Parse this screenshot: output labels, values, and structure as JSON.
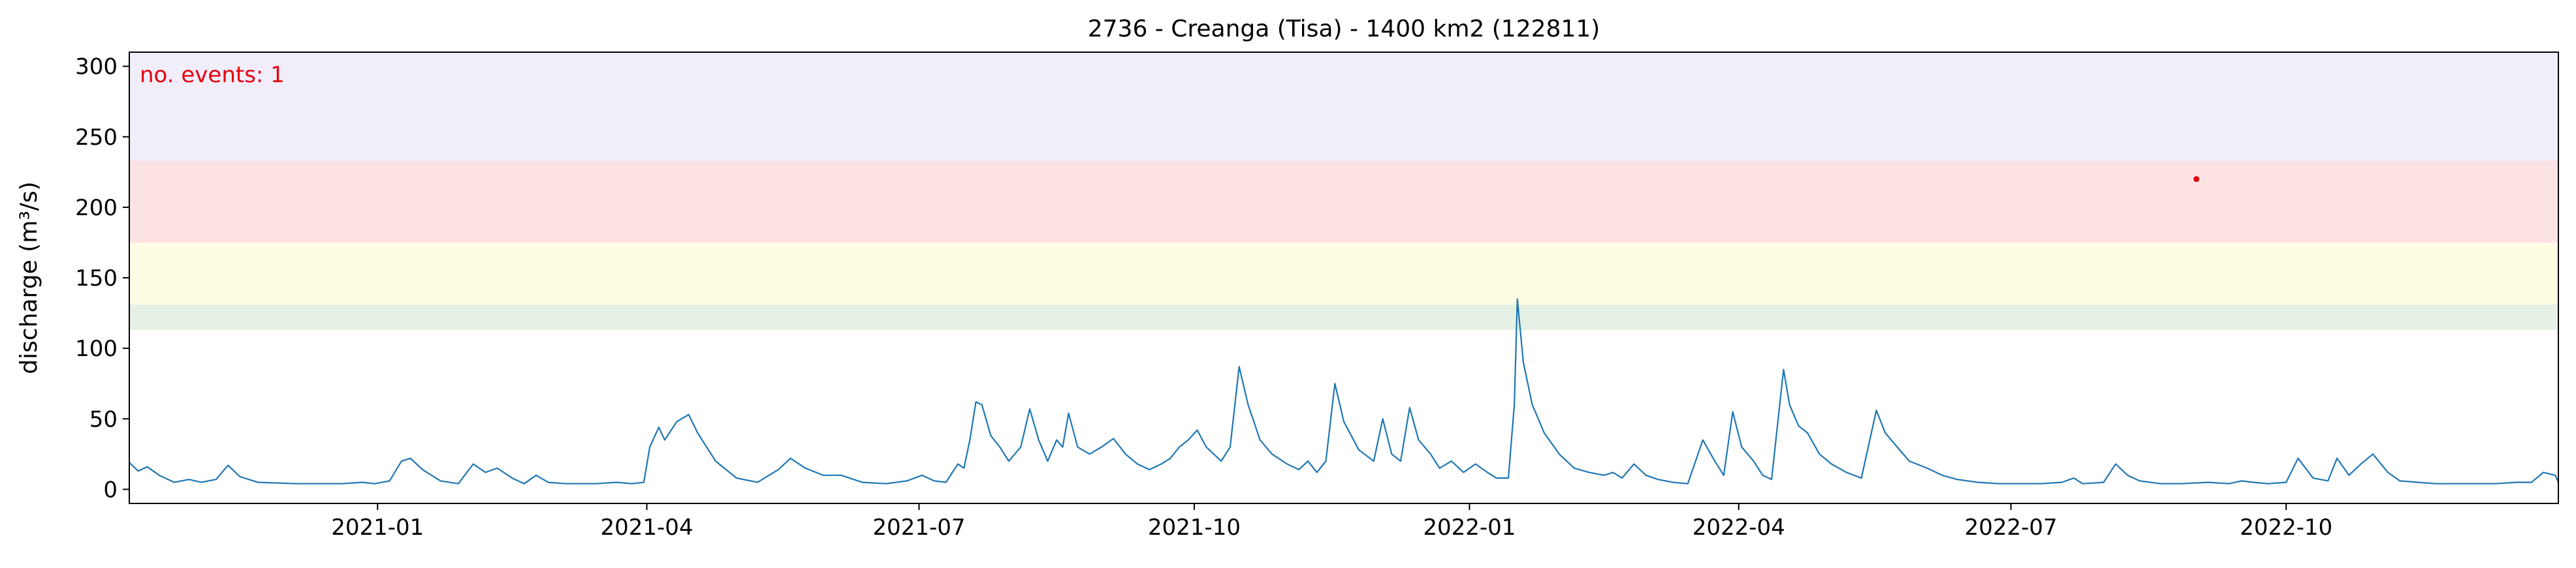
{
  "chart_data": {
    "type": "line",
    "title": "2736 - Creanga (Tisa) - 1400 km2 (122811)",
    "xlabel": "",
    "ylabel": "discharge (m³/s)",
    "ylim": [
      -10,
      310
    ],
    "xlim": [
      "2020-10-10",
      "2022-12-31"
    ],
    "y_ticks": [
      0,
      50,
      100,
      150,
      200,
      250,
      300
    ],
    "x_ticks": [
      "2021-01",
      "2021-04",
      "2021-07",
      "2021-10",
      "2022-01",
      "2022-04",
      "2022-07",
      "2022-10"
    ],
    "x_tick_dates": [
      "2021-01-01",
      "2021-04-01",
      "2021-07-01",
      "2021-10-01",
      "2022-01-01",
      "2022-04-01",
      "2022-07-01",
      "2022-10-01"
    ],
    "grid": false,
    "annotation": {
      "text": "no. events: 1",
      "color": "#e3000f"
    },
    "threshold_bands": [
      {
        "from": 113,
        "to": 131,
        "color": "#e4f1e4"
      },
      {
        "from": 131,
        "to": 175,
        "color": "#fdfde4"
      },
      {
        "from": 175,
        "to": 233,
        "color": "#fde3e4"
      },
      {
        "from": 233,
        "to": 310,
        "color": "#f1eefa"
      }
    ],
    "events": [
      {
        "date": "2022-09-01",
        "value": 220,
        "color": "#e3000f"
      }
    ],
    "series": [
      {
        "color": "#1f77b4",
        "points": [
          [
            "2020-10-10",
            19
          ],
          [
            "2020-10-13",
            13
          ],
          [
            "2020-10-16",
            16
          ],
          [
            "2020-10-20",
            10
          ],
          [
            "2020-10-25",
            5
          ],
          [
            "2020-10-30",
            7
          ],
          [
            "2020-11-03",
            5
          ],
          [
            "2020-11-08",
            7
          ],
          [
            "2020-11-12",
            17
          ],
          [
            "2020-11-16",
            9
          ],
          [
            "2020-11-22",
            5
          ],
          [
            "2020-12-05",
            4
          ],
          [
            "2020-12-20",
            4
          ],
          [
            "2020-12-27",
            5
          ],
          [
            "2020-12-31",
            4
          ],
          [
            "2021-01-05",
            6
          ],
          [
            "2021-01-09",
            20
          ],
          [
            "2021-01-12",
            22
          ],
          [
            "2021-01-16",
            14
          ],
          [
            "2021-01-22",
            6
          ],
          [
            "2021-01-28",
            4
          ],
          [
            "2021-02-02",
            18
          ],
          [
            "2021-02-06",
            12
          ],
          [
            "2021-02-10",
            15
          ],
          [
            "2021-02-15",
            8
          ],
          [
            "2021-02-19",
            4
          ],
          [
            "2021-02-23",
            10
          ],
          [
            "2021-02-27",
            5
          ],
          [
            "2021-03-05",
            4
          ],
          [
            "2021-03-15",
            4
          ],
          [
            "2021-03-22",
            5
          ],
          [
            "2021-03-27",
            4
          ],
          [
            "2021-03-31",
            5
          ],
          [
            "2021-04-02",
            30
          ],
          [
            "2021-04-05",
            44
          ],
          [
            "2021-04-07",
            35
          ],
          [
            "2021-04-11",
            48
          ],
          [
            "2021-04-15",
            53
          ],
          [
            "2021-04-18",
            40
          ],
          [
            "2021-04-24",
            20
          ],
          [
            "2021-05-01",
            8
          ],
          [
            "2021-05-08",
            5
          ],
          [
            "2021-05-15",
            14
          ],
          [
            "2021-05-19",
            22
          ],
          [
            "2021-05-24",
            15
          ],
          [
            "2021-05-30",
            10
          ],
          [
            "2021-06-05",
            10
          ],
          [
            "2021-06-12",
            5
          ],
          [
            "2021-06-20",
            4
          ],
          [
            "2021-06-27",
            6
          ],
          [
            "2021-07-02",
            10
          ],
          [
            "2021-07-06",
            6
          ],
          [
            "2021-07-10",
            5
          ],
          [
            "2021-07-14",
            18
          ],
          [
            "2021-07-16",
            15
          ],
          [
            "2021-07-18",
            35
          ],
          [
            "2021-07-20",
            62
          ],
          [
            "2021-07-22",
            60
          ],
          [
            "2021-07-25",
            38
          ],
          [
            "2021-07-28",
            30
          ],
          [
            "2021-07-31",
            20
          ],
          [
            "2021-08-04",
            30
          ],
          [
            "2021-08-07",
            57
          ],
          [
            "2021-08-10",
            35
          ],
          [
            "2021-08-13",
            20
          ],
          [
            "2021-08-16",
            35
          ],
          [
            "2021-08-18",
            30
          ],
          [
            "2021-08-20",
            54
          ],
          [
            "2021-08-23",
            30
          ],
          [
            "2021-08-27",
            25
          ],
          [
            "2021-08-31",
            30
          ],
          [
            "2021-09-04",
            36
          ],
          [
            "2021-09-08",
            25
          ],
          [
            "2021-09-12",
            18
          ],
          [
            "2021-09-16",
            14
          ],
          [
            "2021-09-20",
            18
          ],
          [
            "2021-09-23",
            22
          ],
          [
            "2021-09-26",
            30
          ],
          [
            "2021-09-29",
            35
          ],
          [
            "2021-10-02",
            42
          ],
          [
            "2021-10-05",
            30
          ],
          [
            "2021-10-10",
            20
          ],
          [
            "2021-10-13",
            30
          ],
          [
            "2021-10-16",
            87
          ],
          [
            "2021-10-19",
            60
          ],
          [
            "2021-10-23",
            35
          ],
          [
            "2021-10-27",
            25
          ],
          [
            "2021-11-01",
            18
          ],
          [
            "2021-11-05",
            14
          ],
          [
            "2021-11-08",
            20
          ],
          [
            "2021-11-11",
            12
          ],
          [
            "2021-11-14",
            20
          ],
          [
            "2021-11-17",
            75
          ],
          [
            "2021-11-20",
            48
          ],
          [
            "2021-11-25",
            28
          ],
          [
            "2021-11-30",
            20
          ],
          [
            "2021-12-03",
            50
          ],
          [
            "2021-12-06",
            25
          ],
          [
            "2021-12-09",
            20
          ],
          [
            "2021-12-12",
            58
          ],
          [
            "2021-12-15",
            35
          ],
          [
            "2021-12-19",
            25
          ],
          [
            "2021-12-22",
            15
          ],
          [
            "2021-12-26",
            20
          ],
          [
            "2021-12-30",
            12
          ],
          [
            "2022-01-03",
            18
          ],
          [
            "2022-01-07",
            12
          ],
          [
            "2022-01-10",
            8
          ],
          [
            "2022-01-14",
            8
          ],
          [
            "2022-01-16",
            60
          ],
          [
            "2022-01-17",
            135
          ],
          [
            "2022-01-19",
            90
          ],
          [
            "2022-01-22",
            60
          ],
          [
            "2022-01-26",
            40
          ],
          [
            "2022-01-31",
            25
          ],
          [
            "2022-02-05",
            15
          ],
          [
            "2022-02-10",
            12
          ],
          [
            "2022-02-15",
            10
          ],
          [
            "2022-02-18",
            12
          ],
          [
            "2022-02-21",
            8
          ],
          [
            "2022-02-25",
            18
          ],
          [
            "2022-03-01",
            10
          ],
          [
            "2022-03-05",
            7
          ],
          [
            "2022-03-10",
            5
          ],
          [
            "2022-03-15",
            4
          ],
          [
            "2022-03-20",
            35
          ],
          [
            "2022-03-24",
            20
          ],
          [
            "2022-03-27",
            10
          ],
          [
            "2022-03-30",
            55
          ],
          [
            "2022-04-02",
            30
          ],
          [
            "2022-04-06",
            20
          ],
          [
            "2022-04-09",
            10
          ],
          [
            "2022-04-12",
            7
          ],
          [
            "2022-04-16",
            85
          ],
          [
            "2022-04-18",
            60
          ],
          [
            "2022-04-21",
            45
          ],
          [
            "2022-04-24",
            40
          ],
          [
            "2022-04-28",
            25
          ],
          [
            "2022-05-02",
            18
          ],
          [
            "2022-05-07",
            12
          ],
          [
            "2022-05-12",
            8
          ],
          [
            "2022-05-17",
            56
          ],
          [
            "2022-05-20",
            40
          ],
          [
            "2022-05-24",
            30
          ],
          [
            "2022-05-28",
            20
          ],
          [
            "2022-06-03",
            15
          ],
          [
            "2022-06-08",
            10
          ],
          [
            "2022-06-13",
            7
          ],
          [
            "2022-06-20",
            5
          ],
          [
            "2022-06-27",
            4
          ],
          [
            "2022-07-04",
            4
          ],
          [
            "2022-07-11",
            4
          ],
          [
            "2022-07-18",
            5
          ],
          [
            "2022-07-22",
            8
          ],
          [
            "2022-07-25",
            4
          ],
          [
            "2022-08-01",
            5
          ],
          [
            "2022-08-05",
            18
          ],
          [
            "2022-08-09",
            10
          ],
          [
            "2022-08-13",
            6
          ],
          [
            "2022-08-20",
            4
          ],
          [
            "2022-08-27",
            4
          ],
          [
            "2022-09-05",
            5
          ],
          [
            "2022-09-12",
            4
          ],
          [
            "2022-09-16",
            6
          ],
          [
            "2022-09-20",
            5
          ],
          [
            "2022-09-25",
            4
          ],
          [
            "2022-10-01",
            5
          ],
          [
            "2022-10-05",
            22
          ],
          [
            "2022-10-10",
            8
          ],
          [
            "2022-10-15",
            6
          ],
          [
            "2022-10-18",
            22
          ],
          [
            "2022-10-22",
            10
          ],
          [
            "2022-10-26",
            18
          ],
          [
            "2022-10-30",
            25
          ],
          [
            "2022-11-04",
            12
          ],
          [
            "2022-11-08",
            6
          ],
          [
            "2022-11-14",
            5
          ],
          [
            "2022-11-20",
            4
          ],
          [
            "2022-11-26",
            4
          ],
          [
            "2022-12-03",
            4
          ],
          [
            "2022-12-10",
            4
          ],
          [
            "2022-12-17",
            5
          ],
          [
            "2022-12-22",
            5
          ],
          [
            "2022-12-26",
            12
          ],
          [
            "2022-12-30",
            10
          ],
          [
            "2022-12-31",
            5
          ]
        ]
      }
    ]
  }
}
